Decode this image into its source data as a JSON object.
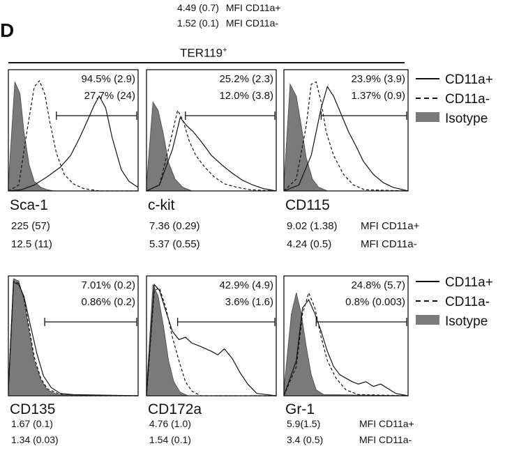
{
  "panel_label": "D",
  "top_mfi": [
    {
      "value": "4.49 (0.7)",
      "label": "MFI CD11a+"
    },
    {
      "value": "1.52 (0.1)",
      "label": "MFI CD11a-"
    }
  ],
  "group_title_main": "TER119",
  "group_title_sup": "+",
  "legend_top": [
    {
      "style": "solid",
      "label": "CD11a+"
    },
    {
      "style": "dashed",
      "label": "CD11a-"
    },
    {
      "style": "filled",
      "label": "Isotype",
      "color": "#7a7a7a"
    }
  ],
  "legend_bottom": [
    {
      "style": "solid",
      "label": "CD11a+"
    },
    {
      "style": "dashed",
      "label": "CD11a-"
    },
    {
      "style": "filled",
      "label": "Isotype",
      "color": "#7a7a7a"
    }
  ],
  "chart_data": [
    {
      "type": "area",
      "marker": "Sca-1",
      "gate_pct": [
        "94.5% (2.9)",
        "27.7% (24)"
      ],
      "mfi": [
        "225 (57)",
        "12.5 (11)"
      ],
      "mfi_labels": [
        "",
        ""
      ],
      "series": [
        {
          "name": "Isotype",
          "style": "filled",
          "x": [
            0,
            0.05,
            0.09,
            0.12,
            0.16,
            0.2,
            0.25,
            0.3,
            0.35,
            1
          ],
          "y": [
            0.05,
            0.92,
            0.82,
            0.5,
            0.22,
            0.08,
            0.03,
            0.01,
            0,
            0
          ]
        },
        {
          "name": "CD11a-",
          "style": "dashed",
          "x": [
            0,
            0.08,
            0.15,
            0.2,
            0.24,
            0.28,
            0.32,
            0.37,
            0.43,
            0.5,
            0.58,
            0.7,
            1
          ],
          "y": [
            0,
            0.05,
            0.55,
            0.88,
            0.93,
            0.82,
            0.58,
            0.32,
            0.14,
            0.06,
            0.02,
            0,
            0
          ]
        },
        {
          "name": "CD11a+",
          "style": "solid",
          "x": [
            0,
            0.1,
            0.2,
            0.3,
            0.4,
            0.48,
            0.55,
            0.62,
            0.66,
            0.7,
            0.75,
            0.8,
            0.87,
            0.93,
            1
          ],
          "y": [
            0,
            0.01,
            0.05,
            0.12,
            0.2,
            0.3,
            0.45,
            0.62,
            0.72,
            0.8,
            0.7,
            0.45,
            0.18,
            0.08,
            0.03
          ]
        }
      ],
      "gate_start": 0.37
    },
    {
      "type": "area",
      "marker": "c-kit",
      "gate_pct": [
        "25.2% (2.3)",
        "12.0% (3.8)"
      ],
      "mfi": [
        "7.36 (0.29)",
        "5.37 (0.55)"
      ],
      "mfi_labels": [
        "",
        ""
      ],
      "series": [
        {
          "name": "Isotype",
          "style": "filled",
          "x": [
            0,
            0.05,
            0.09,
            0.13,
            0.17,
            0.22,
            0.28,
            0.35,
            1
          ],
          "y": [
            0.05,
            0.75,
            0.68,
            0.48,
            0.24,
            0.1,
            0.03,
            0,
            0
          ]
        },
        {
          "name": "CD11a-",
          "style": "dashed",
          "x": [
            0,
            0.1,
            0.18,
            0.24,
            0.28,
            0.33,
            0.38,
            0.45,
            0.52,
            0.6,
            0.7,
            0.8,
            1
          ],
          "y": [
            0,
            0.05,
            0.4,
            0.68,
            0.6,
            0.42,
            0.3,
            0.2,
            0.12,
            0.06,
            0.03,
            0.01,
            0
          ]
        },
        {
          "name": "CD11a+",
          "style": "solid",
          "x": [
            0,
            0.1,
            0.2,
            0.26,
            0.31,
            0.36,
            0.42,
            0.5,
            0.58,
            0.66,
            0.74,
            0.82,
            0.9,
            1
          ],
          "y": [
            0,
            0.05,
            0.35,
            0.62,
            0.55,
            0.5,
            0.42,
            0.3,
            0.22,
            0.15,
            0.09,
            0.05,
            0.02,
            0
          ]
        }
      ],
      "gate_start": 0.3
    },
    {
      "type": "area",
      "marker": "CD115",
      "gate_pct": [
        "23.9% (3.9)",
        "1.37% (0.9)"
      ],
      "mfi": [
        "9.02 (1.38)",
        "4.24 (0.5)"
      ],
      "mfi_labels": [
        "MFI CD11a+",
        "MFI CD11a-"
      ],
      "series": [
        {
          "name": "Isotype",
          "style": "filled",
          "x": [
            0,
            0.05,
            0.1,
            0.14,
            0.18,
            0.23,
            0.28,
            0.35,
            1
          ],
          "y": [
            0.05,
            0.9,
            0.8,
            0.55,
            0.28,
            0.1,
            0.03,
            0,
            0
          ]
        },
        {
          "name": "CD11a-",
          "style": "dashed",
          "x": [
            0,
            0.1,
            0.18,
            0.22,
            0.26,
            0.3,
            0.34,
            0.4,
            0.48,
            0.56,
            0.65,
            1
          ],
          "y": [
            0,
            0.1,
            0.55,
            0.9,
            0.92,
            0.75,
            0.5,
            0.3,
            0.14,
            0.05,
            0.01,
            0
          ]
        },
        {
          "name": "CD11a+",
          "style": "solid",
          "x": [
            0,
            0.12,
            0.22,
            0.3,
            0.35,
            0.4,
            0.46,
            0.52,
            0.58,
            0.64,
            0.72,
            0.8,
            0.88,
            1
          ],
          "y": [
            0,
            0.05,
            0.3,
            0.7,
            0.88,
            0.8,
            0.65,
            0.5,
            0.38,
            0.25,
            0.14,
            0.07,
            0.03,
            0
          ]
        }
      ],
      "gate_start": 0.3
    },
    {
      "type": "area",
      "marker": "CD135",
      "gate_pct": [
        "7.01% (0.2)",
        "0.86% (0.2)"
      ],
      "mfi": [
        "1.67 (0.1)",
        "1.34 (0.03)"
      ],
      "mfi_labels": [
        "",
        ""
      ],
      "series": [
        {
          "name": "Isotype",
          "style": "filled",
          "x": [
            0,
            0.04,
            0.08,
            0.12,
            0.16,
            0.2,
            0.25,
            0.3,
            0.38,
            1
          ],
          "y": [
            0.05,
            1.0,
            0.98,
            0.82,
            0.55,
            0.3,
            0.14,
            0.05,
            0.01,
            0
          ]
        },
        {
          "name": "CD11a-",
          "style": "dashed",
          "x": [
            0,
            0.04,
            0.08,
            0.12,
            0.16,
            0.2,
            0.25,
            0.3,
            0.38,
            0.45,
            1
          ],
          "y": [
            0.05,
            0.98,
            0.96,
            0.84,
            0.58,
            0.33,
            0.15,
            0.06,
            0.02,
            0,
            0
          ]
        },
        {
          "name": "CD11a+",
          "style": "solid",
          "x": [
            0,
            0.04,
            0.08,
            0.12,
            0.17,
            0.22,
            0.27,
            0.33,
            0.4,
            0.5,
            1
          ],
          "y": [
            0.05,
            0.97,
            0.95,
            0.85,
            0.6,
            0.36,
            0.17,
            0.07,
            0.02,
            0.01,
            0
          ]
        }
      ],
      "gate_start": 0.28
    },
    {
      "type": "area",
      "marker": "CD172a",
      "gate_pct": [
        "42.9% (4.9)",
        "3.6% (1.6)"
      ],
      "mfi": [
        "4.76 (1.0)",
        "1.54 (0.1)"
      ],
      "mfi_labels": [
        "",
        ""
      ],
      "series": [
        {
          "name": "Isotype",
          "style": "filled",
          "x": [
            0,
            0.05,
            0.09,
            0.13,
            0.17,
            0.21,
            0.26,
            0.32,
            1
          ],
          "y": [
            0.05,
            0.95,
            0.85,
            0.6,
            0.3,
            0.12,
            0.03,
            0,
            0
          ]
        },
        {
          "name": "CD11a-",
          "style": "dashed",
          "x": [
            0,
            0.06,
            0.1,
            0.15,
            0.2,
            0.25,
            0.3,
            0.35,
            0.42,
            1
          ],
          "y": [
            0,
            0.9,
            0.92,
            0.75,
            0.5,
            0.3,
            0.12,
            0.04,
            0,
            0
          ]
        },
        {
          "name": "CD11a+",
          "style": "solid",
          "x": [
            0,
            0.06,
            0.1,
            0.15,
            0.2,
            0.25,
            0.3,
            0.35,
            0.42,
            0.5,
            0.55,
            0.6,
            0.66,
            0.72,
            0.78,
            0.85,
            1
          ],
          "y": [
            0,
            0.95,
            0.9,
            0.72,
            0.55,
            0.48,
            0.5,
            0.45,
            0.42,
            0.38,
            0.35,
            0.4,
            0.32,
            0.2,
            0.1,
            0.02,
            0
          ]
        }
      ],
      "gate_start": 0.24
    },
    {
      "type": "area",
      "marker": "Gr-1",
      "gate_pct": [
        "24.8% (5.7)",
        "0.8% (0.003)"
      ],
      "mfi": [
        "5.9(1.5)",
        "3.4 (0.5)"
      ],
      "mfi_labels": [
        "MFI CD11a+",
        "MFI CD11a-"
      ],
      "series": [
        {
          "name": "Isotype",
          "style": "filled",
          "x": [
            0,
            0.06,
            0.1,
            0.14,
            0.18,
            0.22,
            0.26,
            0.32,
            1
          ],
          "y": [
            0.05,
            0.7,
            0.88,
            0.7,
            0.42,
            0.18,
            0.05,
            0.01,
            0
          ]
        },
        {
          "name": "CD11a-",
          "style": "dashed",
          "x": [
            0,
            0.1,
            0.15,
            0.2,
            0.25,
            0.3,
            0.35,
            0.42,
            0.5,
            0.6,
            1
          ],
          "y": [
            0,
            0.25,
            0.7,
            0.88,
            0.75,
            0.5,
            0.3,
            0.15,
            0.05,
            0.01,
            0
          ]
        },
        {
          "name": "CD11a+",
          "style": "solid",
          "x": [
            0,
            0.1,
            0.15,
            0.2,
            0.25,
            0.3,
            0.35,
            0.4,
            0.45,
            0.5,
            0.55,
            0.6,
            0.66,
            0.72,
            0.78,
            0.84,
            0.9,
            1
          ],
          "y": [
            0,
            0.3,
            0.75,
            0.82,
            0.7,
            0.55,
            0.38,
            0.25,
            0.18,
            0.15,
            0.12,
            0.1,
            0.12,
            0.08,
            0.1,
            0.06,
            0.02,
            0
          ]
        }
      ],
      "gate_start": 0.26
    }
  ]
}
